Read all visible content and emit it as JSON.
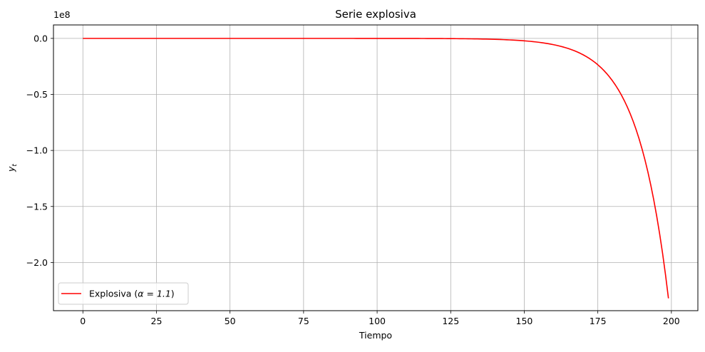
{
  "chart_data": {
    "type": "line",
    "title": "Serie explosiva",
    "xlabel": "Tiempo",
    "ylabel": "y_t",
    "ylabel_main": "y",
    "ylabel_sub": "t",
    "y_offset_label": "1e8",
    "xlim": [
      -10,
      209
    ],
    "ylim": [
      -2.43,
      0.12
    ],
    "y_scale_factor": 100000000,
    "x_ticks": [
      0,
      25,
      50,
      75,
      100,
      125,
      150,
      175,
      200
    ],
    "x_tick_labels": [
      "0",
      "25",
      "50",
      "75",
      "100",
      "125",
      "150",
      "175",
      "200"
    ],
    "y_ticks": [
      0.0,
      -0.5,
      -1.0,
      -1.5,
      -2.0
    ],
    "y_tick_labels": [
      "0.0",
      "−0.5",
      "−1.0",
      "−1.5",
      "−2.0"
    ],
    "grid": true,
    "legend_position": "lower-left",
    "series": [
      {
        "name": "Explosiva (α = 1.1)",
        "legend_prefix": "Explosiva (",
        "legend_math": "α = 1.1",
        "legend_suffix": ")",
        "color": "#ff0000",
        "x_start": 0,
        "x_end": 199,
        "x_sample": [
          0,
          125,
          140,
          150,
          160,
          170,
          175,
          180,
          185,
          190,
          195,
          199
        ],
        "y_sample": [
          0.0,
          -0.0018,
          -0.0076,
          -0.0196,
          -0.0509,
          -0.132,
          -0.2126,
          -0.3424,
          -0.5514,
          -0.8881,
          -1.4302,
          -2.32
        ]
      }
    ]
  }
}
